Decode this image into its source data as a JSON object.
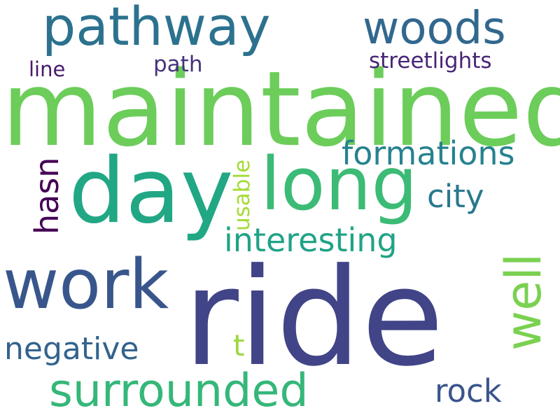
{
  "cloud": {
    "words": {
      "maintained": {
        "text": "maintained",
        "color": "#6ccd5a"
      },
      "ride": {
        "text": "ride",
        "color": "#414487"
      },
      "day": {
        "text": "day",
        "color": "#22a785"
      },
      "long": {
        "text": "long",
        "color": "#3bbb75"
      },
      "work": {
        "text": "work",
        "color": "#39568c"
      },
      "pathway": {
        "text": "pathway",
        "color": "#2c728e"
      },
      "woods": {
        "text": "woods",
        "color": "#31688e"
      },
      "surrounded": {
        "text": "surrounded",
        "color": "#35b779"
      },
      "formations": {
        "text": "formations",
        "color": "#26828e"
      },
      "interesting": {
        "text": "interesting",
        "color": "#20a386"
      },
      "negative": {
        "text": "negative",
        "color": "#33638d"
      },
      "city": {
        "text": "city",
        "color": "#2a788e"
      },
      "rock": {
        "text": "rock",
        "color": "#3a548c"
      },
      "t": {
        "text": "t",
        "color": "#9bd93c"
      },
      "streetlights": {
        "text": "streetlights",
        "color": "#482576"
      },
      "path": {
        "text": "path",
        "color": "#46327e"
      },
      "line": {
        "text": "line",
        "color": "#481a6c"
      },
      "well": {
        "text": "well",
        "color": "#7ad151"
      },
      "hasn": {
        "text": "hasn",
        "color": "#440154"
      },
      "usable": {
        "text": "usable",
        "color": "#a5db36"
      }
    }
  }
}
